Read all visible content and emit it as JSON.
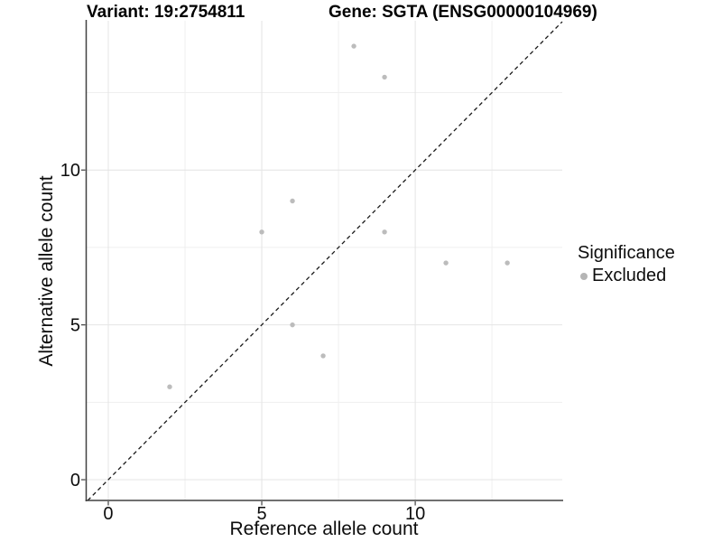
{
  "titles": {
    "variant": "Variant: 19:2754811",
    "gene": "Gene: SGTA (ENSG00000104969)"
  },
  "legend": {
    "title": "Significance",
    "items": [
      {
        "label": "Excluded",
        "color": "#b5b5b5"
      }
    ]
  },
  "chart_data": {
    "type": "scatter",
    "title_left": "Variant: 19:2754811",
    "title_right": "Gene: SGTA (ENSG00000104969)",
    "xlabel": "Reference allele count",
    "ylabel": "Alternative allele count",
    "xlim": [
      -0.72,
      14.79
    ],
    "ylim": [
      -0.67,
      14.82
    ],
    "x_major_ticks": [
      0,
      5,
      10
    ],
    "y_major_ticks": [
      0,
      5,
      10
    ],
    "x_minor_ticks": [
      2.5,
      7.5,
      12.5
    ],
    "y_minor_ticks": [
      2.5,
      7.5,
      12.5
    ],
    "grid": "major+minor",
    "legend_position": "right",
    "series": [
      {
        "name": "Excluded",
        "marker": "circle",
        "color": "#bcbcbc",
        "points": [
          {
            "x": 2,
            "y": 3
          },
          {
            "x": 5,
            "y": 8
          },
          {
            "x": 6,
            "y": 5
          },
          {
            "x": 6,
            "y": 9
          },
          {
            "x": 7,
            "y": 4
          },
          {
            "x": 8,
            "y": 14
          },
          {
            "x": 9,
            "y": 8
          },
          {
            "x": 9,
            "y": 13
          },
          {
            "x": 11,
            "y": 7
          },
          {
            "x": 13,
            "y": 7
          }
        ]
      }
    ],
    "reference_line": {
      "type": "identity",
      "style": "dashed",
      "color": "#1a1a1a"
    }
  },
  "colors": {
    "background": "#ffffff",
    "grid_major": "#e4e4e4",
    "grid_minor": "#efefef",
    "axis_line": "#404040",
    "tick_text": "#0d0d0d",
    "point": "#bcbcbc"
  }
}
